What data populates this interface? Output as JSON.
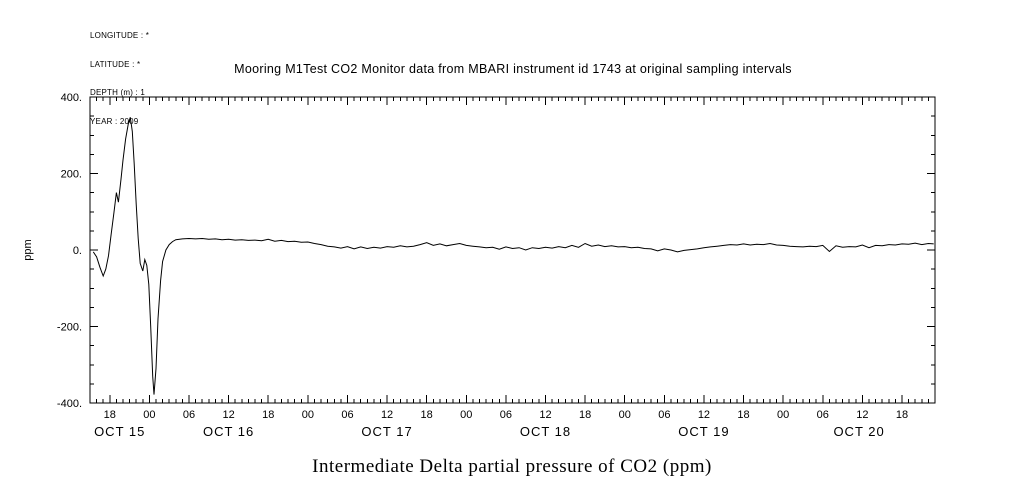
{
  "meta_block": {
    "lines": [
      "LONGITUDE : *",
      "LATITUDE : *",
      "DEPTH (m) : 1",
      "YEAR : 2009"
    ]
  },
  "title": "Mooring M1Test CO2 Monitor data from MBARI instrument id 1743 at original sampling intervals",
  "caption": "Intermediate Delta partial pressure of CO2 (ppm)",
  "colors": {
    "foreground": "#000000",
    "background": "#ffffff"
  },
  "chart_data": {
    "type": "line",
    "title": "Mooring M1Test CO2 Monitor data from MBARI instrument id 1743 at original sampling intervals",
    "xlabel": "",
    "ylabel": "ppm",
    "ylim": [
      -400,
      400
    ],
    "y_major_ticks": [
      -400,
      -200,
      0,
      200,
      400
    ],
    "y_tick_labels": [
      "-400.",
      "-200.",
      "0.",
      "200.",
      "400."
    ],
    "y_minor_step": 50,
    "x_hours_range": [
      15,
      143
    ],
    "x_major_step_hours": 6,
    "x_minor_step_hours": 1,
    "grid": false,
    "legend": false,
    "date_labels": [
      {
        "label": "OCT 15",
        "start": 0,
        "end": 24
      },
      {
        "label": "OCT 16",
        "start": 24,
        "end": 48
      },
      {
        "label": "OCT 17",
        "start": 48,
        "end": 72
      },
      {
        "label": "OCT 18",
        "start": 72,
        "end": 96
      },
      {
        "label": "OCT 19",
        "start": 96,
        "end": 120
      },
      {
        "label": "OCT 20",
        "start": 120,
        "end": 144
      }
    ],
    "series": [
      {
        "name": "delta_pco2_ppm",
        "points": [
          [
            15.5,
            -5
          ],
          [
            16,
            -18
          ],
          [
            16.5,
            -45
          ],
          [
            17,
            -68
          ],
          [
            17.4,
            -50
          ],
          [
            17.8,
            -15
          ],
          [
            18.2,
            40
          ],
          [
            18.6,
            95
          ],
          [
            19,
            150
          ],
          [
            19.3,
            125
          ],
          [
            19.7,
            185
          ],
          [
            20,
            235
          ],
          [
            20.4,
            290
          ],
          [
            20.8,
            330
          ],
          [
            21.1,
            347
          ],
          [
            21.4,
            310
          ],
          [
            21.7,
            225
          ],
          [
            22,
            120
          ],
          [
            22.3,
            30
          ],
          [
            22.6,
            -35
          ],
          [
            23,
            -55
          ],
          [
            23.3,
            -25
          ],
          [
            23.6,
            -40
          ],
          [
            23.9,
            -90
          ],
          [
            24.2,
            -200
          ],
          [
            24.5,
            -330
          ],
          [
            24.7,
            -378
          ],
          [
            25,
            -310
          ],
          [
            25.3,
            -180
          ],
          [
            25.7,
            -80
          ],
          [
            26,
            -30
          ],
          [
            26.5,
            0
          ],
          [
            27,
            14
          ],
          [
            27.5,
            22
          ],
          [
            28,
            27
          ],
          [
            29,
            29
          ],
          [
            30,
            30
          ],
          [
            31,
            29
          ],
          [
            32,
            30
          ],
          [
            33,
            28
          ],
          [
            34,
            29
          ],
          [
            35,
            27
          ],
          [
            36,
            28
          ],
          [
            37,
            26
          ],
          [
            38,
            27
          ],
          [
            39,
            25
          ],
          [
            40,
            26
          ],
          [
            41,
            24
          ],
          [
            42,
            28
          ],
          [
            43,
            23
          ],
          [
            44,
            25
          ],
          [
            45,
            22
          ],
          [
            46,
            23
          ],
          [
            47,
            20
          ],
          [
            48,
            21
          ],
          [
            49,
            17
          ],
          [
            50,
            14
          ],
          [
            51,
            10
          ],
          [
            52,
            8
          ],
          [
            53,
            5
          ],
          [
            54,
            9
          ],
          [
            55,
            3
          ],
          [
            56,
            8
          ],
          [
            57,
            4
          ],
          [
            58,
            7
          ],
          [
            59,
            5
          ],
          [
            60,
            9
          ],
          [
            61,
            7
          ],
          [
            62,
            11
          ],
          [
            63,
            8
          ],
          [
            64,
            10
          ],
          [
            65,
            14
          ],
          [
            66,
            19
          ],
          [
            67,
            12
          ],
          [
            68,
            16
          ],
          [
            69,
            11
          ],
          [
            70,
            14
          ],
          [
            71,
            17
          ],
          [
            72,
            12
          ],
          [
            73,
            10
          ],
          [
            74,
            8
          ],
          [
            75,
            6
          ],
          [
            76,
            7
          ],
          [
            77,
            2
          ],
          [
            78,
            8
          ],
          [
            79,
            4
          ],
          [
            80,
            6
          ],
          [
            81,
            0
          ],
          [
            82,
            6
          ],
          [
            83,
            4
          ],
          [
            84,
            7
          ],
          [
            85,
            5
          ],
          [
            86,
            9
          ],
          [
            87,
            6
          ],
          [
            88,
            12
          ],
          [
            89,
            7
          ],
          [
            90,
            17
          ],
          [
            91,
            10
          ],
          [
            92,
            13
          ],
          [
            93,
            9
          ],
          [
            94,
            11
          ],
          [
            95,
            8
          ],
          [
            96,
            9
          ],
          [
            97,
            6
          ],
          [
            98,
            7
          ],
          [
            99,
            4
          ],
          [
            100,
            3
          ],
          [
            101,
            -2
          ],
          [
            102,
            3
          ],
          [
            103,
            0
          ],
          [
            104,
            -5
          ],
          [
            105,
            -1
          ],
          [
            106,
            1
          ],
          [
            107,
            3
          ],
          [
            108,
            6
          ],
          [
            109,
            8
          ],
          [
            110,
            10
          ],
          [
            111,
            12
          ],
          [
            112,
            14
          ],
          [
            113,
            13
          ],
          [
            114,
            16
          ],
          [
            115,
            13
          ],
          [
            116,
            15
          ],
          [
            117,
            14
          ],
          [
            118,
            17
          ],
          [
            119,
            13
          ],
          [
            120,
            12
          ],
          [
            121,
            10
          ],
          [
            122,
            9
          ],
          [
            123,
            8
          ],
          [
            124,
            10
          ],
          [
            125,
            9
          ],
          [
            126,
            12
          ],
          [
            127,
            -4
          ],
          [
            128,
            11
          ],
          [
            129,
            7
          ],
          [
            130,
            9
          ],
          [
            131,
            8
          ],
          [
            132,
            13
          ],
          [
            133,
            6
          ],
          [
            134,
            12
          ],
          [
            135,
            11
          ],
          [
            136,
            14
          ],
          [
            137,
            13
          ],
          [
            138,
            16
          ],
          [
            139,
            15
          ],
          [
            140,
            18
          ],
          [
            141,
            14
          ],
          [
            142,
            17
          ],
          [
            142.8,
            16
          ]
        ]
      }
    ]
  }
}
